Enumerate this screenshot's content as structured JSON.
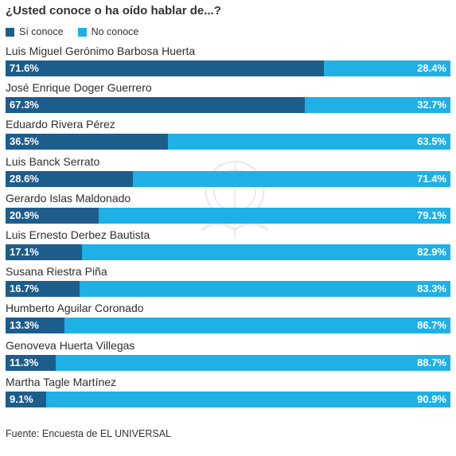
{
  "title": "¿Usted conoce o ha oído hablar de...?",
  "legend": {
    "yes_label": "Sí conoce",
    "no_label": "No conoce"
  },
  "colors": {
    "yes": "#1d5d8c",
    "no": "#1fb0e6"
  },
  "source": "Fuente: Encuesta de EL UNIVERSAL",
  "chart_data": {
    "type": "bar",
    "orientation": "horizontal",
    "stacked": true,
    "title": "¿Usted conoce o ha oído hablar de...?",
    "categories": [
      "Luis Miguel Gerónimo Barbosa Huerta",
      "José Enrique Doger Guerrero",
      "Eduardo Rivera Pérez",
      "Luis Banck Serrato",
      "Gerardo Islas Maldonado",
      "Luis Ernesto Derbez Bautista",
      "Susana Riestra Piña",
      "Humberto Aguilar Coronado",
      "Genoveva Huerta Villegas",
      "Martha Tagle Martínez"
    ],
    "series": [
      {
        "name": "Sí conoce",
        "values": [
          71.6,
          67.3,
          36.5,
          28.6,
          20.9,
          17.1,
          16.7,
          13.3,
          11.3,
          9.1
        ],
        "labels": [
          "71.6%",
          "67.3%",
          "36.5%",
          "28.6%",
          "20.9%",
          "17.1%",
          "16.7%",
          "13.3%",
          "11.3%",
          "9.1%"
        ]
      },
      {
        "name": "No conoce",
        "values": [
          28.4,
          32.7,
          63.5,
          71.4,
          79.1,
          82.9,
          83.3,
          86.7,
          88.7,
          90.9
        ],
        "labels": [
          "28.4%",
          "32.7%",
          "63.5%",
          "71.4%",
          "79.1%",
          "82.9%",
          "83.3%",
          "86.7%",
          "88.7%",
          "90.9%"
        ]
      }
    ],
    "xlim": [
      0,
      100
    ],
    "legend_position": "top-left",
    "grid": false
  }
}
